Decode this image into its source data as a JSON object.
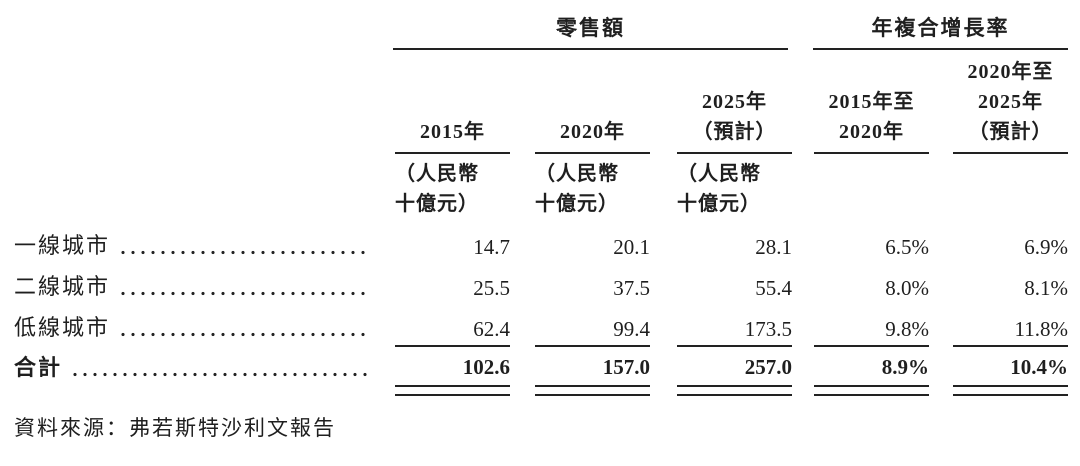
{
  "colors": {
    "text": "#1f1f1f",
    "rule": "#222222",
    "background": "#ffffff"
  },
  "table": {
    "group_headers": [
      {
        "label": "零售額",
        "spans": [
          "2015年",
          "2020年",
          "2025年（預計）"
        ]
      },
      {
        "label": "年複合增長率",
        "spans": [
          "2015年至2020年",
          "2020年至2025年（預計）"
        ]
      }
    ],
    "columns": [
      {
        "lines": [
          "2015年"
        ],
        "unit_lines": [
          "（人民幣",
          "十億元）"
        ]
      },
      {
        "lines": [
          "2020年"
        ],
        "unit_lines": [
          "（人民幣",
          "十億元）"
        ]
      },
      {
        "lines": [
          "2025年",
          "（預計）"
        ],
        "unit_lines": [
          "（人民幣",
          "十億元）"
        ]
      },
      {
        "lines": [
          "2015年至",
          "2020年"
        ],
        "unit_lines": []
      },
      {
        "lines": [
          "2020年至",
          "2025年",
          "（預計）"
        ],
        "unit_lines": []
      }
    ],
    "rows": [
      {
        "label": "一線城市",
        "dot_leader": true,
        "values": [
          "14.7",
          "20.1",
          "28.1",
          "6.5%",
          "6.9%"
        ]
      },
      {
        "label": "二線城市",
        "dot_leader": true,
        "values": [
          "25.5",
          "37.5",
          "55.4",
          "8.0%",
          "8.1%"
        ]
      },
      {
        "label": "低線城市",
        "dot_leader": true,
        "values": [
          "62.4",
          "99.4",
          "173.5",
          "9.8%",
          "11.8%"
        ]
      }
    ],
    "total_row": {
      "label": "合計",
      "dot_leader": true,
      "values": [
        "102.6",
        "157.0",
        "257.0",
        "8.9%",
        "10.4%"
      ]
    }
  },
  "footer": {
    "source": "資料來源：弗若斯特沙利文報告"
  }
}
